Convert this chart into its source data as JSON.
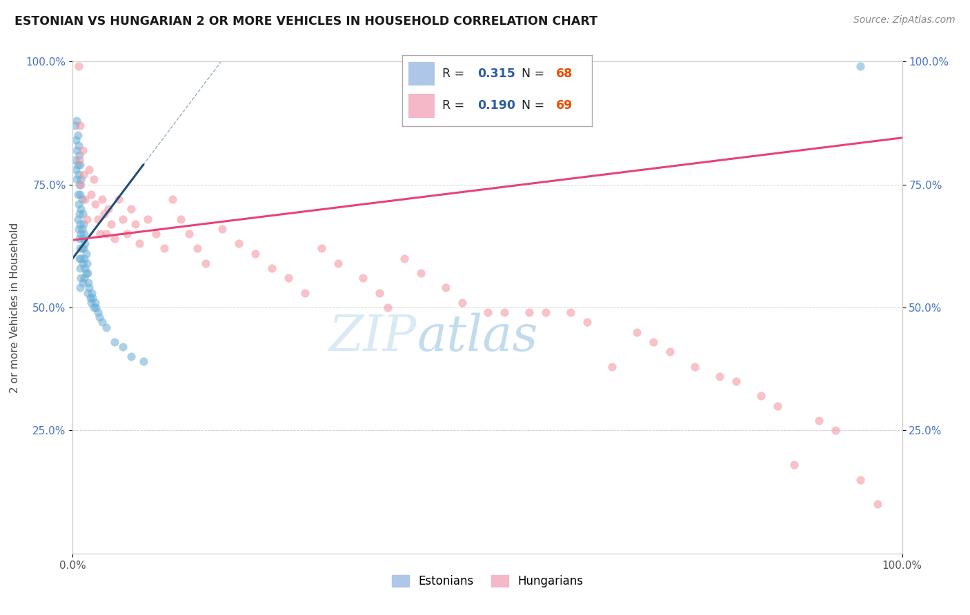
{
  "title": "ESTONIAN VS HUNGARIAN 2 OR MORE VEHICLES IN HOUSEHOLD CORRELATION CHART",
  "source": "Source: ZipAtlas.com",
  "ylabel": "2 or more Vehicles in Household",
  "xlim": [
    0.0,
    1.0
  ],
  "ylim": [
    0.0,
    1.0
  ],
  "ytick_positions": [
    0.25,
    0.5,
    0.75,
    1.0
  ],
  "ytick_labels": [
    "25.0%",
    "50.0%",
    "75.0%",
    "100.0%"
  ],
  "xtick_labels": [
    "0.0%",
    "100.0%"
  ],
  "estonian_color": "#6aaed6",
  "hungarian_color": "#f4919e",
  "line_est_color": "#1f4e79",
  "line_hun_color": "#e8417a",
  "legend_est_color": "#aec6e8",
  "legend_hun_color": "#f4b8c8",
  "R_color": "#2e5ca3",
  "N_color": "#e84d00",
  "marker_size": 70,
  "alpha": 0.55,
  "estonian_R": 0.315,
  "estonian_N": 68,
  "hungarian_R": 0.19,
  "hungarian_N": 69,
  "watermark_zip": "ZIP",
  "watermark_atlas": "atlas",
  "est_line_x0": 0.0,
  "est_line_x1": 0.085,
  "est_line_y0": 0.6,
  "est_line_y1": 0.79,
  "hun_line_x0": 0.0,
  "hun_line_x1": 1.0,
  "hun_line_y0": 0.637,
  "hun_line_y1": 0.845,
  "est_x": [
    0.003,
    0.003,
    0.004,
    0.004,
    0.005,
    0.005,
    0.005,
    0.006,
    0.006,
    0.006,
    0.006,
    0.007,
    0.007,
    0.007,
    0.007,
    0.008,
    0.008,
    0.008,
    0.008,
    0.008,
    0.009,
    0.009,
    0.009,
    0.009,
    0.009,
    0.009,
    0.01,
    0.01,
    0.01,
    0.01,
    0.01,
    0.011,
    0.011,
    0.011,
    0.012,
    0.012,
    0.012,
    0.012,
    0.013,
    0.013,
    0.014,
    0.014,
    0.014,
    0.015,
    0.015,
    0.016,
    0.016,
    0.017,
    0.018,
    0.018,
    0.019,
    0.02,
    0.021,
    0.022,
    0.023,
    0.024,
    0.025,
    0.027,
    0.028,
    0.03,
    0.032,
    0.035,
    0.04,
    0.05,
    0.06,
    0.07,
    0.085,
    0.95
  ],
  "est_y": [
    0.87,
    0.8,
    0.84,
    0.78,
    0.88,
    0.82,
    0.76,
    0.85,
    0.79,
    0.73,
    0.68,
    0.83,
    0.77,
    0.71,
    0.66,
    0.81,
    0.75,
    0.69,
    0.64,
    0.6,
    0.79,
    0.73,
    0.67,
    0.62,
    0.58,
    0.54,
    0.76,
    0.7,
    0.65,
    0.6,
    0.56,
    0.72,
    0.66,
    0.62,
    0.69,
    0.64,
    0.59,
    0.55,
    0.67,
    0.62,
    0.65,
    0.6,
    0.56,
    0.63,
    0.58,
    0.61,
    0.57,
    0.59,
    0.57,
    0.53,
    0.55,
    0.54,
    0.52,
    0.51,
    0.53,
    0.52,
    0.5,
    0.51,
    0.5,
    0.49,
    0.48,
    0.47,
    0.46,
    0.43,
    0.42,
    0.4,
    0.39,
    0.99
  ],
  "hun_x": [
    0.007,
    0.008,
    0.009,
    0.01,
    0.012,
    0.013,
    0.015,
    0.017,
    0.02,
    0.022,
    0.025,
    0.027,
    0.03,
    0.033,
    0.035,
    0.038,
    0.04,
    0.043,
    0.046,
    0.05,
    0.055,
    0.06,
    0.065,
    0.07,
    0.075,
    0.08,
    0.09,
    0.1,
    0.11,
    0.12,
    0.13,
    0.14,
    0.15,
    0.16,
    0.18,
    0.2,
    0.22,
    0.24,
    0.26,
    0.28,
    0.3,
    0.32,
    0.35,
    0.37,
    0.38,
    0.4,
    0.42,
    0.45,
    0.47,
    0.5,
    0.52,
    0.55,
    0.57,
    0.6,
    0.62,
    0.65,
    0.68,
    0.7,
    0.72,
    0.75,
    0.78,
    0.8,
    0.83,
    0.85,
    0.87,
    0.9,
    0.92,
    0.95,
    0.97
  ],
  "hun_y": [
    0.99,
    0.8,
    0.87,
    0.75,
    0.82,
    0.77,
    0.72,
    0.68,
    0.78,
    0.73,
    0.76,
    0.71,
    0.68,
    0.65,
    0.72,
    0.69,
    0.65,
    0.7,
    0.67,
    0.64,
    0.72,
    0.68,
    0.65,
    0.7,
    0.67,
    0.63,
    0.68,
    0.65,
    0.62,
    0.72,
    0.68,
    0.65,
    0.62,
    0.59,
    0.66,
    0.63,
    0.61,
    0.58,
    0.56,
    0.53,
    0.62,
    0.59,
    0.56,
    0.53,
    0.5,
    0.6,
    0.57,
    0.54,
    0.51,
    0.49,
    0.49,
    0.49,
    0.49,
    0.49,
    0.47,
    0.38,
    0.45,
    0.43,
    0.41,
    0.38,
    0.36,
    0.35,
    0.32,
    0.3,
    0.18,
    0.27,
    0.25,
    0.15,
    0.1
  ]
}
